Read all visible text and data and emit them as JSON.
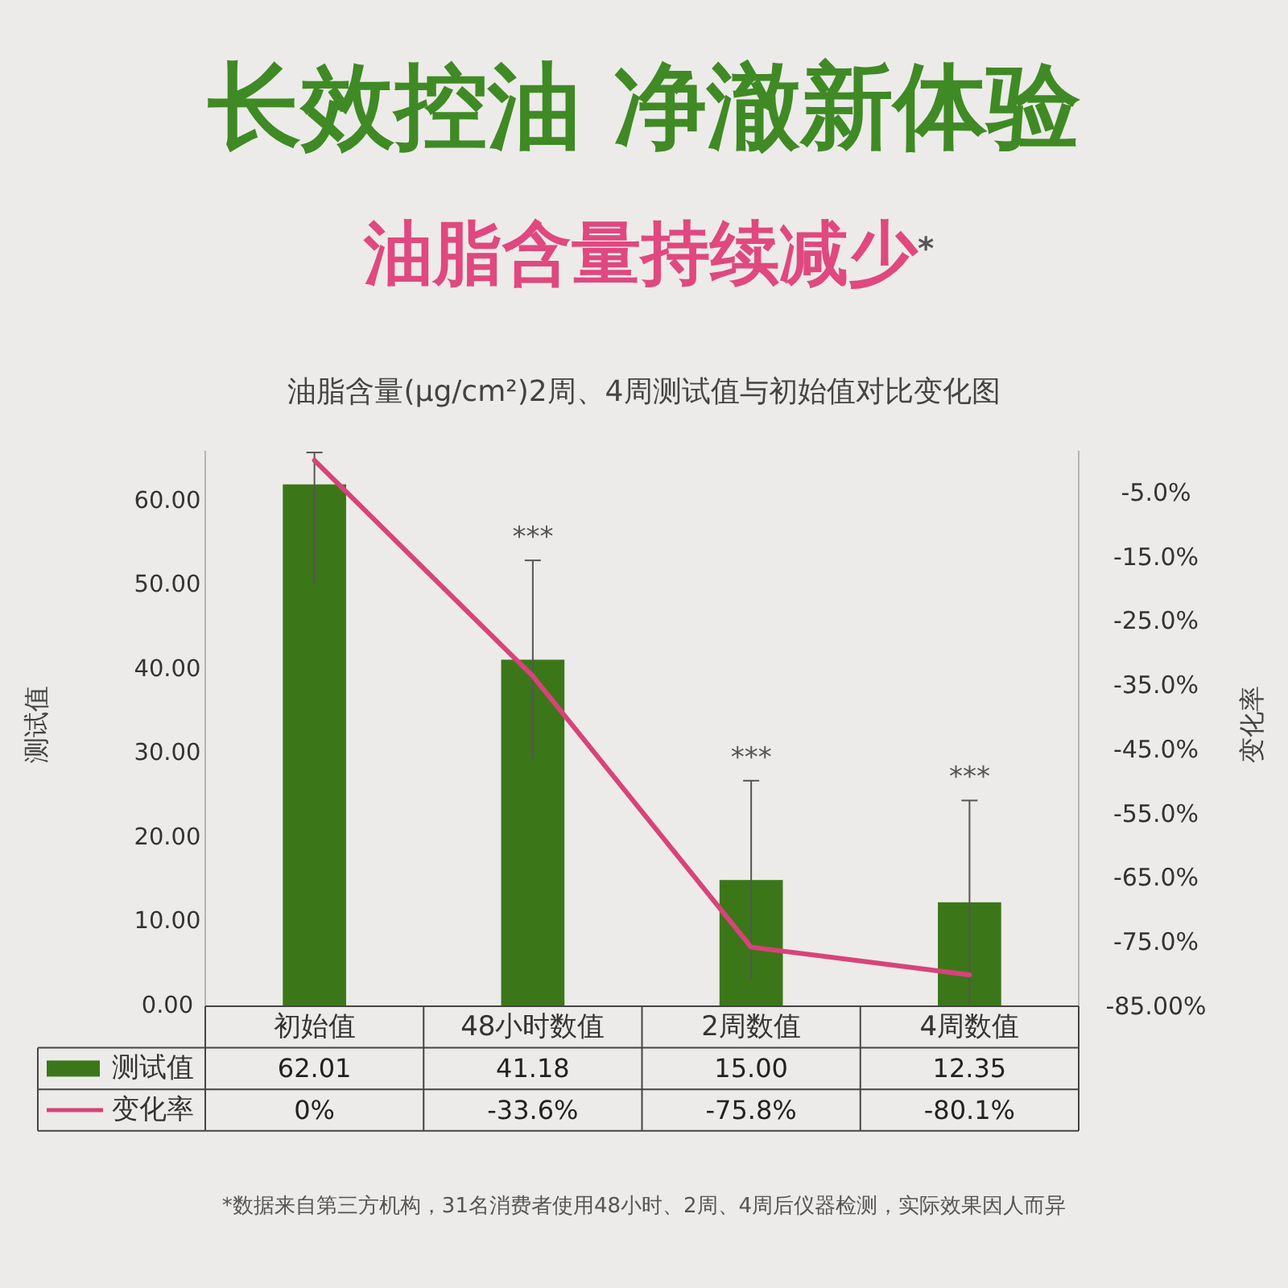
{
  "chart_data": {
    "type": "bar",
    "title": "长效控油 净澈新体验",
    "subtitle": "油脂含量持续减少$^{*}$",
    "ylabel": "测试值",
    "y2label": "变化率",
    "categories": [
      "初始值",
      "48小时数值",
      "2周数值",
      "4周数值"
    ],
    "series": [
      {
        "name": "测试值",
        "color": "#3b7719",
        "values": [
          62.01,
          41.18,
          15.0,
          12.35
        ],
        "value_labels": [
          "62.01",
          "41.18",
          "15.00",
          "12.35"
        ],
        "errors": [
          [
            50.1,
            65.8
          ],
          11.8,
          11.8,
          12.1
        ]
      },
      {
        "name": "变化率",
        "type": "line",
        "axis": "y2",
        "color": "#d8437a",
        "values": [
          0,
          -33.6,
          -75.8,
          -80.1
        ],
        "value_labels": [
          "0%",
          "-33.6%",
          "-75.8%",
          "-80.1%"
        ]
      }
    ],
    "ylim": [
      0,
      66
    ],
    "yticks": [
      {
        "value": 0,
        "label": "0.00"
      },
      {
        "value": 10,
        "label": "10.00"
      },
      {
        "value": 20,
        "label": "20.00"
      },
      {
        "value": 30,
        "label": "30.00"
      },
      {
        "value": 40,
        "label": "40.00"
      },
      {
        "value": 50,
        "label": "50.00"
      },
      {
        "value": 60,
        "label": "60.00"
      }
    ],
    "y2lim": [
      -85,
      1.5
    ],
    "y2ticks": [
      {
        "value": -5,
        "label": "-5.0%"
      },
      {
        "value": -15,
        "label": "-15.0%"
      },
      {
        "value": -25,
        "label": "-25.0%"
      },
      {
        "value": -35,
        "label": "-35.0%"
      },
      {
        "value": -45,
        "label": "-45.0%"
      },
      {
        "value": -55,
        "label": "-55.0%"
      },
      {
        "value": -65,
        "label": "-65.0%"
      },
      {
        "value": -75,
        "label": "-75.0%"
      },
      {
        "value": -85,
        "label": "-85.00%"
      }
    ],
    "legend": "bottom",
    "annotations": [
      "油脂含量(μg/cm²)2周、4周测试值与初始值对比变化图",
      "***",
      "***",
      "***",
      "*数据来自第三方机构，31名消费者使用48小时、2周、4周后仪器检测，实际效果因人而异"
    ]
  }
}
